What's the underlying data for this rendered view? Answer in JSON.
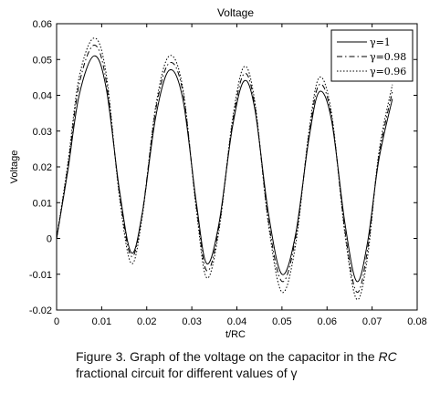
{
  "chart_data": {
    "type": "line",
    "title": "Voltage",
    "xlabel": "t/RC",
    "ylabel": "Voltage",
    "xlim": [
      0,
      0.08
    ],
    "ylim": [
      -0.02,
      0.06
    ],
    "xticks": [
      0,
      0.01,
      0.02,
      0.03,
      0.04,
      0.05,
      0.06,
      0.07,
      0.08
    ],
    "xtick_labels": [
      "0",
      "0.01",
      "0.02",
      "0.03",
      "0.04",
      "0.05",
      "0.06",
      "0.07",
      "0.08"
    ],
    "yticks": [
      -0.02,
      -0.01,
      0,
      0.01,
      0.02,
      0.03,
      0.04,
      0.05,
      0.06
    ],
    "ytick_labels": [
      "-0.02",
      "-0.01",
      "0",
      "0.01",
      "0.02",
      "0.03",
      "0.04",
      "0.05",
      "0.06"
    ],
    "grid": false,
    "legend_position": "top-right",
    "series": [
      {
        "name": "γ=1",
        "style": "solid",
        "x": [
          0,
          0.0025,
          0.005,
          0.0083,
          0.011,
          0.014,
          0.0166,
          0.019,
          0.022,
          0.025,
          0.028,
          0.031,
          0.0333,
          0.036,
          0.039,
          0.0416,
          0.044,
          0.047,
          0.05,
          0.053,
          0.056,
          0.0583,
          0.061,
          0.064,
          0.0666,
          0.069,
          0.0715,
          0.0745
        ],
        "y": [
          0,
          0.019,
          0.04,
          0.051,
          0.042,
          0.013,
          -0.004,
          0.007,
          0.034,
          0.047,
          0.039,
          0.01,
          -0.007,
          0.004,
          0.031,
          0.044,
          0.036,
          0.007,
          -0.01,
          0.001,
          0.028,
          0.041,
          0.033,
          0.004,
          -0.012,
          -0.001,
          0.022,
          0.039
        ]
      },
      {
        "name": "γ=0.98",
        "style": "dashed",
        "x": [
          0,
          0.0025,
          0.005,
          0.0083,
          0.011,
          0.014,
          0.0166,
          0.019,
          0.022,
          0.025,
          0.028,
          0.031,
          0.0333,
          0.036,
          0.039,
          0.0416,
          0.044,
          0.047,
          0.05,
          0.053,
          0.056,
          0.0583,
          0.061,
          0.064,
          0.0666,
          0.069,
          0.0715,
          0.0745
        ],
        "y": [
          0,
          0.02,
          0.043,
          0.054,
          0.044,
          0.012,
          -0.005,
          0.007,
          0.036,
          0.049,
          0.041,
          0.009,
          -0.009,
          0.003,
          0.032,
          0.046,
          0.037,
          0.005,
          -0.012,
          0.0,
          0.029,
          0.043,
          0.034,
          0.002,
          -0.015,
          -0.003,
          0.023,
          0.041
        ]
      },
      {
        "name": "γ=0.96",
        "style": "dotted",
        "x": [
          0,
          0.0025,
          0.005,
          0.0083,
          0.011,
          0.014,
          0.0166,
          0.019,
          0.022,
          0.025,
          0.028,
          0.031,
          0.0333,
          0.036,
          0.039,
          0.0416,
          0.044,
          0.047,
          0.05,
          0.053,
          0.056,
          0.0583,
          0.061,
          0.064,
          0.0666,
          0.069,
          0.0715,
          0.0745
        ],
        "y": [
          0,
          0.021,
          0.045,
          0.056,
          0.046,
          0.011,
          -0.007,
          0.006,
          0.037,
          0.051,
          0.042,
          0.008,
          -0.011,
          0.002,
          0.033,
          0.048,
          0.038,
          0.004,
          -0.015,
          -0.002,
          0.03,
          0.045,
          0.035,
          0.001,
          -0.017,
          -0.005,
          0.024,
          0.043
        ]
      }
    ]
  },
  "caption": {
    "line1_prefix": "Figure 3. Graph of the voltage on the capacitor in the ",
    "line1_italic": "RC",
    "line2": "fractional circuit for different values of γ"
  }
}
